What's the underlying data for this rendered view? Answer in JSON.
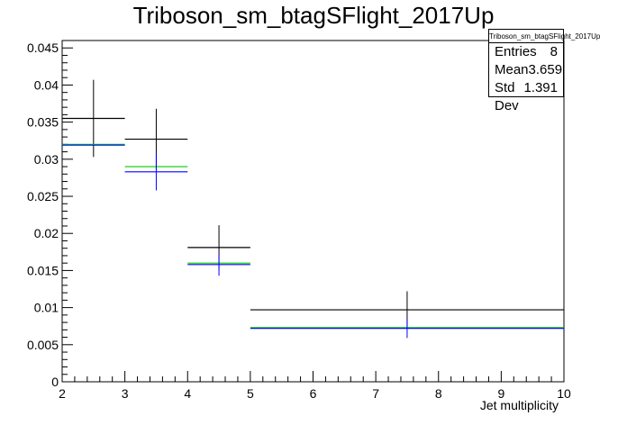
{
  "title": "Triboson_sm_btagSFlight_2017Up",
  "stats": {
    "name": "Triboson_sm_btagSFlight_2017Up",
    "rows": [
      {
        "label": "Entries",
        "value": "8"
      },
      {
        "label": "Mean",
        "value": "3.659"
      },
      {
        "label": "Std Dev",
        "value": "1.391"
      }
    ]
  },
  "chart_data": {
    "type": "bar",
    "title": "Triboson_sm_btagSFlight_2017Up",
    "xlabel": "Jet multiplicity",
    "ylabel": "",
    "xlim": [
      2,
      10
    ],
    "ylim": [
      0,
      0.046
    ],
    "x_ticks": [
      "2",
      "3",
      "4",
      "5",
      "6",
      "7",
      "8",
      "9",
      "10"
    ],
    "y_ticks": [
      "0",
      "0.005",
      "0.01",
      "0.015",
      "0.02",
      "0.025",
      "0.03",
      "0.035",
      "0.04",
      "0.045"
    ],
    "bins": [
      [
        2,
        3
      ],
      [
        3,
        4
      ],
      [
        4,
        5
      ],
      [
        5,
        10
      ]
    ],
    "series": [
      {
        "color": "#000000",
        "values": [
          0.0355,
          0.0327,
          0.0181,
          0.0097
        ],
        "errors": [
          0.0052,
          0.0041,
          0.003,
          0.0025
        ],
        "draw_errors": true
      },
      {
        "color": "#00cc00",
        "values": [
          0.032,
          0.029,
          0.016,
          0.0073
        ],
        "draw_errors": false
      },
      {
        "color": "#0000ff",
        "values": [
          0.0319,
          0.0283,
          0.0158,
          0.0072
        ],
        "errors": [
          0,
          0.0025,
          0.0015,
          0.0013
        ],
        "draw_errors": true
      }
    ]
  }
}
